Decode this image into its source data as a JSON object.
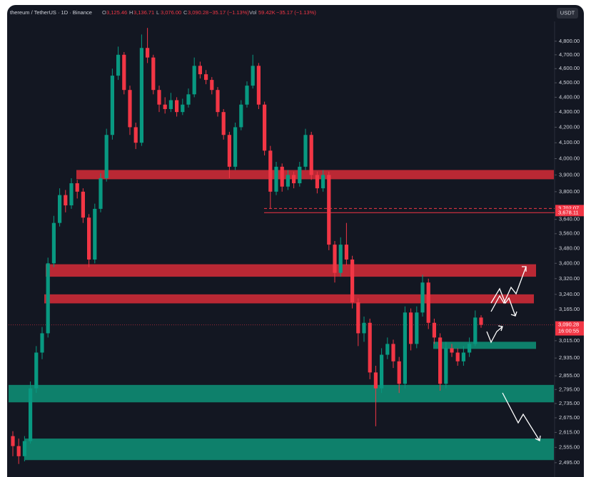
{
  "chart_data": {
    "type": "candlestick",
    "header": {
      "symbol": "thereum / TetherUS · 1D · Binance",
      "fields": [
        {
          "key": "O",
          "value": "3,125.46"
        },
        {
          "key": "H",
          "value": "3,136.71"
        },
        {
          "key": "L",
          "value": "3,076.00"
        },
        {
          "key": "C",
          "value": "3,090.28"
        }
      ],
      "change": "−35.17 (−1.13%)",
      "vol_key": "Vol",
      "vol_value": "59.42K",
      "vol_change": "−35.17 (−1.13%)"
    },
    "currency_button": "USDT",
    "log_scale": true,
    "ylim": [
      2440,
      4950
    ],
    "yticks": [
      {
        "value": 4800,
        "label": "4,800.00"
      },
      {
        "value": 4700,
        "label": "4,700.00"
      },
      {
        "value": 4600,
        "label": "4,600.00"
      },
      {
        "value": 4500,
        "label": "4,500.00"
      },
      {
        "value": 4400,
        "label": "4,400.00"
      },
      {
        "value": 4300,
        "label": "4,300.00"
      },
      {
        "value": 4200,
        "label": "4,200.00"
      },
      {
        "value": 4100,
        "label": "4,100.00"
      },
      {
        "value": 4000,
        "label": "4,000.00"
      },
      {
        "value": 3900,
        "label": "3,900.00"
      },
      {
        "value": 3800,
        "label": "3,800.00"
      },
      {
        "value": 3640,
        "label": "3,640.00"
      },
      {
        "value": 3560,
        "label": "3,560.00"
      },
      {
        "value": 3480,
        "label": "3,480.00"
      },
      {
        "value": 3400,
        "label": "3,400.00"
      },
      {
        "value": 3320,
        "label": "3,320.00"
      },
      {
        "value": 3240,
        "label": "3,240.00"
      },
      {
        "value": 3165,
        "label": "3,165.00"
      },
      {
        "value": 3015,
        "label": "3,015.00"
      },
      {
        "value": 2935,
        "label": "2,935.00"
      },
      {
        "value": 2855,
        "label": "2,855.00"
      },
      {
        "value": 2795,
        "label": "2,795.00"
      },
      {
        "value": 2735,
        "label": "2,735.00"
      },
      {
        "value": 2675,
        "label": "2,675.00"
      },
      {
        "value": 2615,
        "label": "2,615.00"
      },
      {
        "value": 2555,
        "label": "2,555.00"
      },
      {
        "value": 2495,
        "label": "2,495.00"
      }
    ],
    "up_color": "#089981",
    "down_color": "#f23645",
    "candles": [
      [
        2600,
        2620,
        2520,
        2560
      ],
      [
        2560,
        2590,
        2490,
        2520
      ],
      [
        2520,
        2600,
        2500,
        2580
      ],
      [
        2580,
        2830,
        2570,
        2800
      ],
      [
        2800,
        2990,
        2780,
        2960
      ],
      [
        2960,
        3080,
        2930,
        3050
      ],
      [
        3050,
        3430,
        3030,
        3400
      ],
      [
        3400,
        3660,
        3380,
        3620
      ],
      [
        3620,
        3820,
        3600,
        3780
      ],
      [
        3780,
        3810,
        3680,
        3720
      ],
      [
        3720,
        3880,
        3700,
        3850
      ],
      [
        3850,
        3870,
        3760,
        3800
      ],
      [
        3800,
        3820,
        3620,
        3650
      ],
      [
        3650,
        3670,
        3380,
        3420
      ],
      [
        3420,
        3730,
        3400,
        3700
      ],
      [
        3700,
        3910,
        3680,
        3880
      ],
      [
        3880,
        4190,
        3860,
        4150
      ],
      [
        4150,
        4600,
        4120,
        4550
      ],
      [
        4550,
        4760,
        4520,
        4700
      ],
      [
        4700,
        4720,
        4420,
        4450
      ],
      [
        4450,
        4480,
        4150,
        4200
      ],
      [
        4200,
        4230,
        4060,
        4100
      ],
      [
        4100,
        4850,
        4080,
        4750
      ],
      [
        4750,
        4900,
        4640,
        4680
      ],
      [
        4680,
        4700,
        4420,
        4450
      ],
      [
        4450,
        4480,
        4300,
        4350
      ],
      [
        4350,
        4400,
        4290,
        4320
      ],
      [
        4320,
        4430,
        4300,
        4380
      ],
      [
        4380,
        4400,
        4270,
        4300
      ],
      [
        4300,
        4390,
        4280,
        4350
      ],
      [
        4350,
        4460,
        4330,
        4420
      ],
      [
        4420,
        4680,
        4400,
        4620
      ],
      [
        4620,
        4650,
        4530,
        4560
      ],
      [
        4560,
        4590,
        4490,
        4520
      ],
      [
        4520,
        4540,
        4420,
        4450
      ],
      [
        4450,
        4470,
        4270,
        4300
      ],
      [
        4300,
        4320,
        4120,
        4150
      ],
      [
        4150,
        4170,
        3880,
        3950
      ],
      [
        3950,
        4230,
        3930,
        4200
      ],
      [
        4200,
        4380,
        4180,
        4350
      ],
      [
        4350,
        4510,
        4330,
        4480
      ],
      [
        4480,
        4700,
        4460,
        4620
      ],
      [
        4620,
        4640,
        4320,
        4350
      ],
      [
        4350,
        4370,
        4020,
        4050
      ],
      [
        4050,
        4080,
        3700,
        3800
      ],
      [
        3800,
        3980,
        3780,
        3950
      ],
      [
        3950,
        3970,
        3800,
        3830
      ],
      [
        3830,
        3930,
        3810,
        3900
      ],
      [
        3900,
        3920,
        3820,
        3850
      ],
      [
        3850,
        3980,
        3830,
        3950
      ],
      [
        3950,
        4190,
        3930,
        4150
      ],
      [
        4150,
        4170,
        3870,
        3900
      ],
      [
        3900,
        3920,
        3790,
        3820
      ],
      [
        3820,
        3930,
        3800,
        3900
      ],
      [
        3900,
        3920,
        3470,
        3500
      ],
      [
        3500,
        3520,
        3300,
        3350
      ],
      [
        3350,
        3540,
        3330,
        3500
      ],
      [
        3500,
        3620,
        3390,
        3420
      ],
      [
        3420,
        3440,
        3170,
        3200
      ],
      [
        3200,
        3220,
        2990,
        3050
      ],
      [
        3050,
        3130,
        3010,
        3100
      ],
      [
        3100,
        3120,
        2840,
        2870
      ],
      [
        2870,
        2900,
        2640,
        2800
      ],
      [
        2800,
        2980,
        2780,
        2950
      ],
      [
        2950,
        3030,
        2930,
        3000
      ],
      [
        3000,
        3020,
        2890,
        2920
      ],
      [
        2920,
        2940,
        2780,
        2820
      ],
      [
        2820,
        3180,
        2800,
        3150
      ],
      [
        3150,
        3170,
        2970,
        3000
      ],
      [
        3000,
        3180,
        2980,
        3150
      ],
      [
        3150,
        3340,
        3130,
        3300
      ],
      [
        3300,
        3320,
        3070,
        3100
      ],
      [
        3100,
        3120,
        3000,
        3030
      ],
      [
        3030,
        3050,
        2790,
        2820
      ],
      [
        2820,
        3010,
        2800,
        2980
      ],
      [
        2980,
        3000,
        2940,
        2960
      ],
      [
        2960,
        2980,
        2900,
        2920
      ],
      [
        2920,
        2990,
        2900,
        2960
      ],
      [
        2960,
        3030,
        2940,
        3000
      ],
      [
        3000,
        3160,
        2990,
        3125.46
      ],
      [
        3125.46,
        3136.71,
        3076.0,
        3090.28
      ]
    ],
    "zones": [
      {
        "lo": 3874,
        "hi": 3930,
        "color": "#c92a36"
      },
      {
        "lo": 3330,
        "hi": 3395,
        "color": "#c92a36"
      },
      {
        "lo": 3195,
        "hi": 3240,
        "color": "#c92a36"
      },
      {
        "lo": 2977,
        "hi": 3010,
        "color": "#0e8a72"
      },
      {
        "lo": 2740,
        "hi": 2815,
        "color": "#0e8a72"
      },
      {
        "lo": 2505,
        "hi": 2590,
        "color": "#0e8a72"
      }
    ],
    "levels": [
      {
        "value": 3702.07,
        "label": "3,702.07",
        "dashed": true
      },
      {
        "value": 3678.11,
        "label": "3,678.11",
        "dashed": false
      }
    ],
    "last_price": {
      "value": 3090.28,
      "label": "3,090.28",
      "countdown": "16:00:55"
    }
  }
}
